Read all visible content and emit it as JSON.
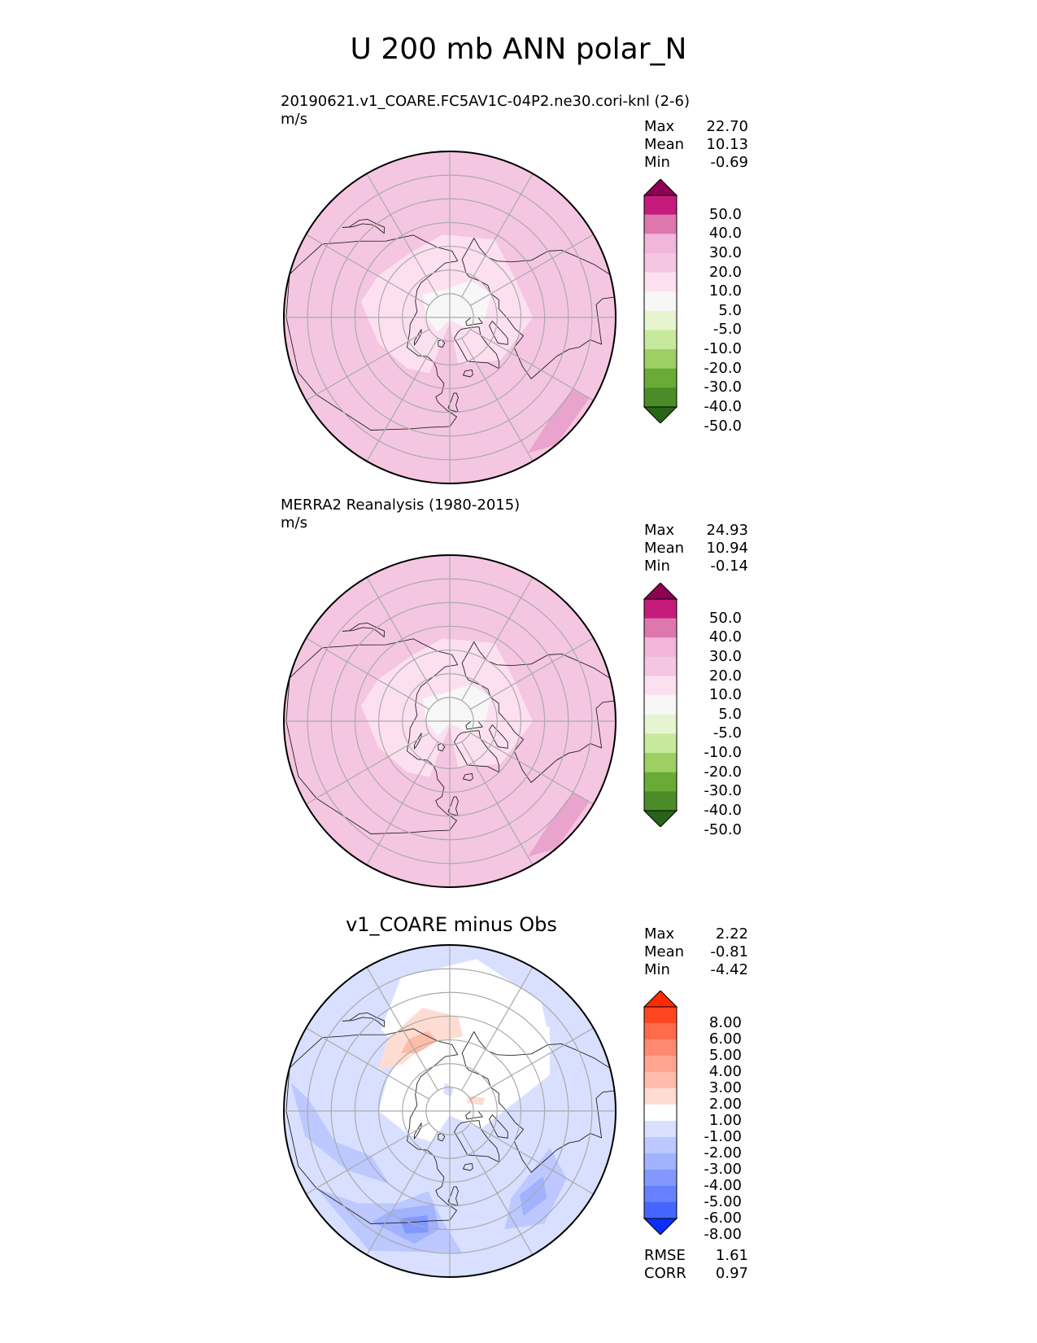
{
  "title": "U 200 mb ANN polar_N",
  "panels": [
    {
      "title_line1": "20190621.v1_COARE.FC5AV1C-04P2.ne30.cori-knl (2-6)",
      "title_line2": "m/s",
      "stats": [
        {
          "label": "Max",
          "value": "22.70"
        },
        {
          "label": "Mean",
          "value": "10.13"
        },
        {
          "label": "Min",
          "value": "-0.69"
        }
      ]
    },
    {
      "title_line1": "MERRA2 Reanalysis (1980-2015)",
      "title_line2": "m/s",
      "stats": [
        {
          "label": "Max",
          "value": "24.93"
        },
        {
          "label": "Mean",
          "value": "10.94"
        },
        {
          "label": "Min",
          "value": "-0.14"
        }
      ]
    },
    {
      "title_center": "v1_COARE minus Obs",
      "stats": [
        {
          "label": "Max",
          "value": "2.22"
        },
        {
          "label": "Mean",
          "value": "-0.81"
        },
        {
          "label": "Min",
          "value": "-4.42"
        }
      ],
      "metrics": [
        {
          "label": "RMSE",
          "value": "1.61"
        },
        {
          "label": "CORR",
          "value": "0.97"
        }
      ]
    }
  ],
  "chart_data": [
    {
      "type": "heatmap",
      "projection": "north-polar-stereographic",
      "variable": "U 200 mb",
      "units": "m/s",
      "colorbar_levels": [
        "50.0",
        "40.0",
        "30.0",
        "20.0",
        "10.0",
        "5.0",
        "-5.0",
        "-10.0",
        "-20.0",
        "-30.0",
        "-40.0",
        "-50.0"
      ],
      "colorbar_colors": [
        "#8e0152",
        "#c51b7d",
        "#de77ae",
        "#f1b6da",
        "#f5c6e1",
        "#fde0ef",
        "#f7f7f7",
        "#e6f5d0",
        "#c7e99c",
        "#9dcf62",
        "#6aab36",
        "#4b8c28",
        "#276419"
      ],
      "field_colors": {
        "low": "#f7f7f7",
        "mid": "#fde0ef",
        "high": "#f5c6e1",
        "peak": "#e9a3cc"
      }
    },
    {
      "type": "heatmap",
      "projection": "north-polar-stereographic",
      "variable": "U 200 mb",
      "units": "m/s",
      "colorbar_levels": [
        "50.0",
        "40.0",
        "30.0",
        "20.0",
        "10.0",
        "5.0",
        "-5.0",
        "-10.0",
        "-20.0",
        "-30.0",
        "-40.0",
        "-50.0"
      ],
      "colorbar_colors": [
        "#8e0152",
        "#c51b7d",
        "#de77ae",
        "#f1b6da",
        "#f5c6e1",
        "#fde0ef",
        "#f7f7f7",
        "#e6f5d0",
        "#c7e99c",
        "#9dcf62",
        "#6aab36",
        "#4b8c28",
        "#276419"
      ],
      "field_colors": {
        "low": "#f7f7f7",
        "mid": "#fde0ef",
        "high": "#f5c6e1",
        "peak": "#e9a3cc"
      }
    },
    {
      "type": "heatmap",
      "projection": "north-polar-stereographic",
      "variable": "U 200 mb difference",
      "units": "m/s",
      "colorbar_levels": [
        "8.00",
        "6.00",
        "5.00",
        "4.00",
        "3.00",
        "2.00",
        "1.00",
        "-1.00",
        "-2.00",
        "-3.00",
        "-4.00",
        "-5.00",
        "-6.00",
        "-8.00"
      ],
      "colorbar_colors": [
        "#ff2a00",
        "#ff4622",
        "#ff6a4d",
        "#ff8a70",
        "#ffa48e",
        "#ffbcaa",
        "#ffdcd2",
        "#ffffff",
        "#d9e0ff",
        "#bcc8ff",
        "#a1b2ff",
        "#8298ff",
        "#6680ff",
        "#4466ff",
        "#0a2eff"
      ],
      "field_colors": {
        "zero": "#ffffff",
        "pos1": "#ffdcd2",
        "pos2": "#ffbcaa",
        "neg1": "#d9e0ff",
        "neg2": "#bcc8ff",
        "neg3": "#a1b2ff",
        "neg4": "#8298ff"
      }
    }
  ]
}
